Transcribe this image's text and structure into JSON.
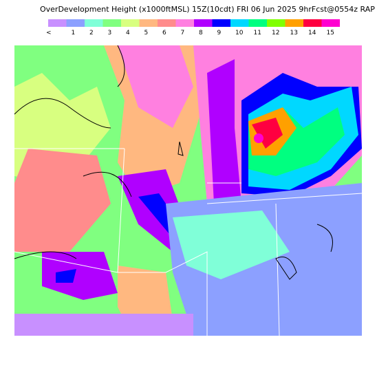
{
  "header": {
    "title": "OverDevelopment Height (x1000ftMSL) 15Z(10cdt) FRI 06 Jun 2025 9hrFcst@0554z RAP"
  },
  "legend": {
    "items": [
      {
        "label": "<",
        "color": "#c890ff"
      },
      {
        "label": "1",
        "color": "#8ca0ff"
      },
      {
        "label": "2",
        "color": "#80ffd8"
      },
      {
        "label": "3",
        "color": "#80ff80"
      },
      {
        "label": "4",
        "color": "#d8ff80"
      },
      {
        "label": "5",
        "color": "#ffb880"
      },
      {
        "label": "6",
        "color": "#ff8c8c"
      },
      {
        "label": "7",
        "color": "#ff80e0"
      },
      {
        "label": "8",
        "color": "#b000ff"
      },
      {
        "label": "9",
        "color": "#0000ff"
      },
      {
        "label": "10",
        "color": "#00d8ff"
      },
      {
        "label": "11",
        "color": "#00ff80"
      },
      {
        "label": "12",
        "color": "#80ff00"
      },
      {
        "label": "13",
        "color": "#ffa000"
      },
      {
        "label": "14",
        "color": "#ff0040"
      },
      {
        "label": "15",
        "color": "#ff00d0"
      }
    ]
  }
}
